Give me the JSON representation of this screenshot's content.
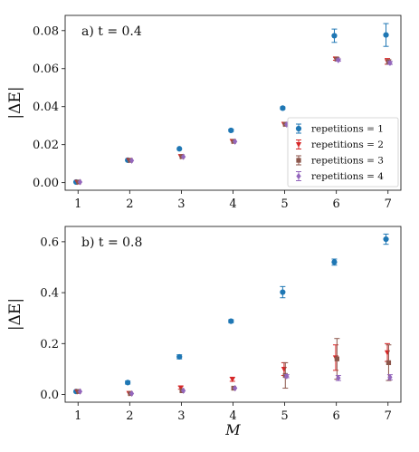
{
  "chart_data": [
    {
      "type": "scatter",
      "title": "a) t = 0.4",
      "ylabel": "|ΔE|",
      "xlabel": "",
      "x": [
        1,
        2,
        3,
        4,
        5,
        6,
        7
      ],
      "x_ticks": [
        "1",
        "2",
        "3",
        "4",
        "5",
        "6",
        "7"
      ],
      "xlim": [
        0.75,
        7.25
      ],
      "ylim": [
        -0.004,
        0.088
      ],
      "y_ticks": [
        0.0,
        0.02,
        0.04,
        0.06,
        0.08
      ],
      "y_tick_labels": [
        "0.00",
        "0.02",
        "0.04",
        "0.06",
        "0.08"
      ],
      "grid": false,
      "legend": {
        "placement": "lower-right",
        "entries": [
          "repetitions = 1",
          "repetitions = 2",
          "repetitions = 3",
          "repetitions = 4"
        ]
      },
      "series": [
        {
          "name": "repetitions = 1",
          "color": "#1f77b4",
          "marker": "circle",
          "values": [
            0.0003,
            0.0118,
            0.0178,
            0.0275,
            0.0392,
            0.0773,
            0.0777
          ],
          "errors": [
            0.0003,
            0.0005,
            0.0005,
            0.0006,
            0.0006,
            0.0035,
            0.006
          ]
        },
        {
          "name": "repetitions = 2",
          "color": "#d62728",
          "marker": "triangle-down",
          "values": [
            0.0003,
            0.0118,
            0.0138,
            0.0218,
            0.0308,
            0.0652,
            0.0638
          ],
          "errors": [
            0.0003,
            0.0004,
            0.0004,
            0.0005,
            0.0005,
            0.0008,
            0.0015
          ]
        },
        {
          "name": "repetitions = 3",
          "color": "#8c564b",
          "marker": "square",
          "values": [
            0.0003,
            0.0117,
            0.0137,
            0.0217,
            0.0307,
            0.065,
            0.0635
          ],
          "errors": [
            0.0003,
            0.0004,
            0.0004,
            0.0005,
            0.0005,
            0.0007,
            0.0012
          ]
        },
        {
          "name": "repetitions = 4",
          "color": "#9467bd",
          "marker": "diamond",
          "values": [
            0.0003,
            0.0116,
            0.0136,
            0.0216,
            0.0306,
            0.0645,
            0.063
          ],
          "errors": [
            0.0003,
            0.0004,
            0.0004,
            0.0005,
            0.0005,
            0.0006,
            0.0008
          ]
        }
      ]
    },
    {
      "type": "scatter",
      "title": "b) t = 0.8",
      "ylabel": "|ΔE|",
      "xlabel": "M",
      "x": [
        1,
        2,
        3,
        4,
        5,
        6,
        7
      ],
      "x_ticks": [
        "1",
        "2",
        "3",
        "4",
        "5",
        "6",
        "7"
      ],
      "xlim": [
        0.75,
        7.25
      ],
      "ylim": [
        -0.03,
        0.66
      ],
      "y_ticks": [
        0.0,
        0.2,
        0.4,
        0.6
      ],
      "y_tick_labels": [
        "0.0",
        "0.2",
        "0.4",
        "0.6"
      ],
      "grid": false,
      "series": [
        {
          "name": "repetitions = 1",
          "color": "#1f77b4",
          "marker": "circle",
          "values": [
            0.012,
            0.047,
            0.148,
            0.288,
            0.402,
            0.52,
            0.61
          ],
          "errors": [
            0.003,
            0.006,
            0.008,
            0.006,
            0.022,
            0.012,
            0.02
          ]
        },
        {
          "name": "repetitions = 2",
          "color": "#d62728",
          "marker": "triangle-down",
          "values": [
            0.012,
            0.005,
            0.027,
            0.06,
            0.1,
            0.145,
            0.165
          ],
          "errors": [
            0.002,
            0.003,
            0.006,
            0.008,
            0.025,
            0.05,
            0.035
          ]
        },
        {
          "name": "repetitions = 3",
          "color": "#8c564b",
          "marker": "square",
          "values": [
            0.012,
            0.004,
            0.015,
            0.025,
            0.075,
            0.14,
            0.125
          ],
          "errors": [
            0.002,
            0.002,
            0.004,
            0.004,
            0.05,
            0.08,
            0.07
          ]
        },
        {
          "name": "repetitions = 4",
          "color": "#9467bd",
          "marker": "diamond",
          "values": [
            0.012,
            0.004,
            0.015,
            0.025,
            0.072,
            0.065,
            0.068
          ],
          "errors": [
            0.002,
            0.002,
            0.003,
            0.004,
            0.006,
            0.01,
            0.01
          ]
        }
      ]
    }
  ]
}
